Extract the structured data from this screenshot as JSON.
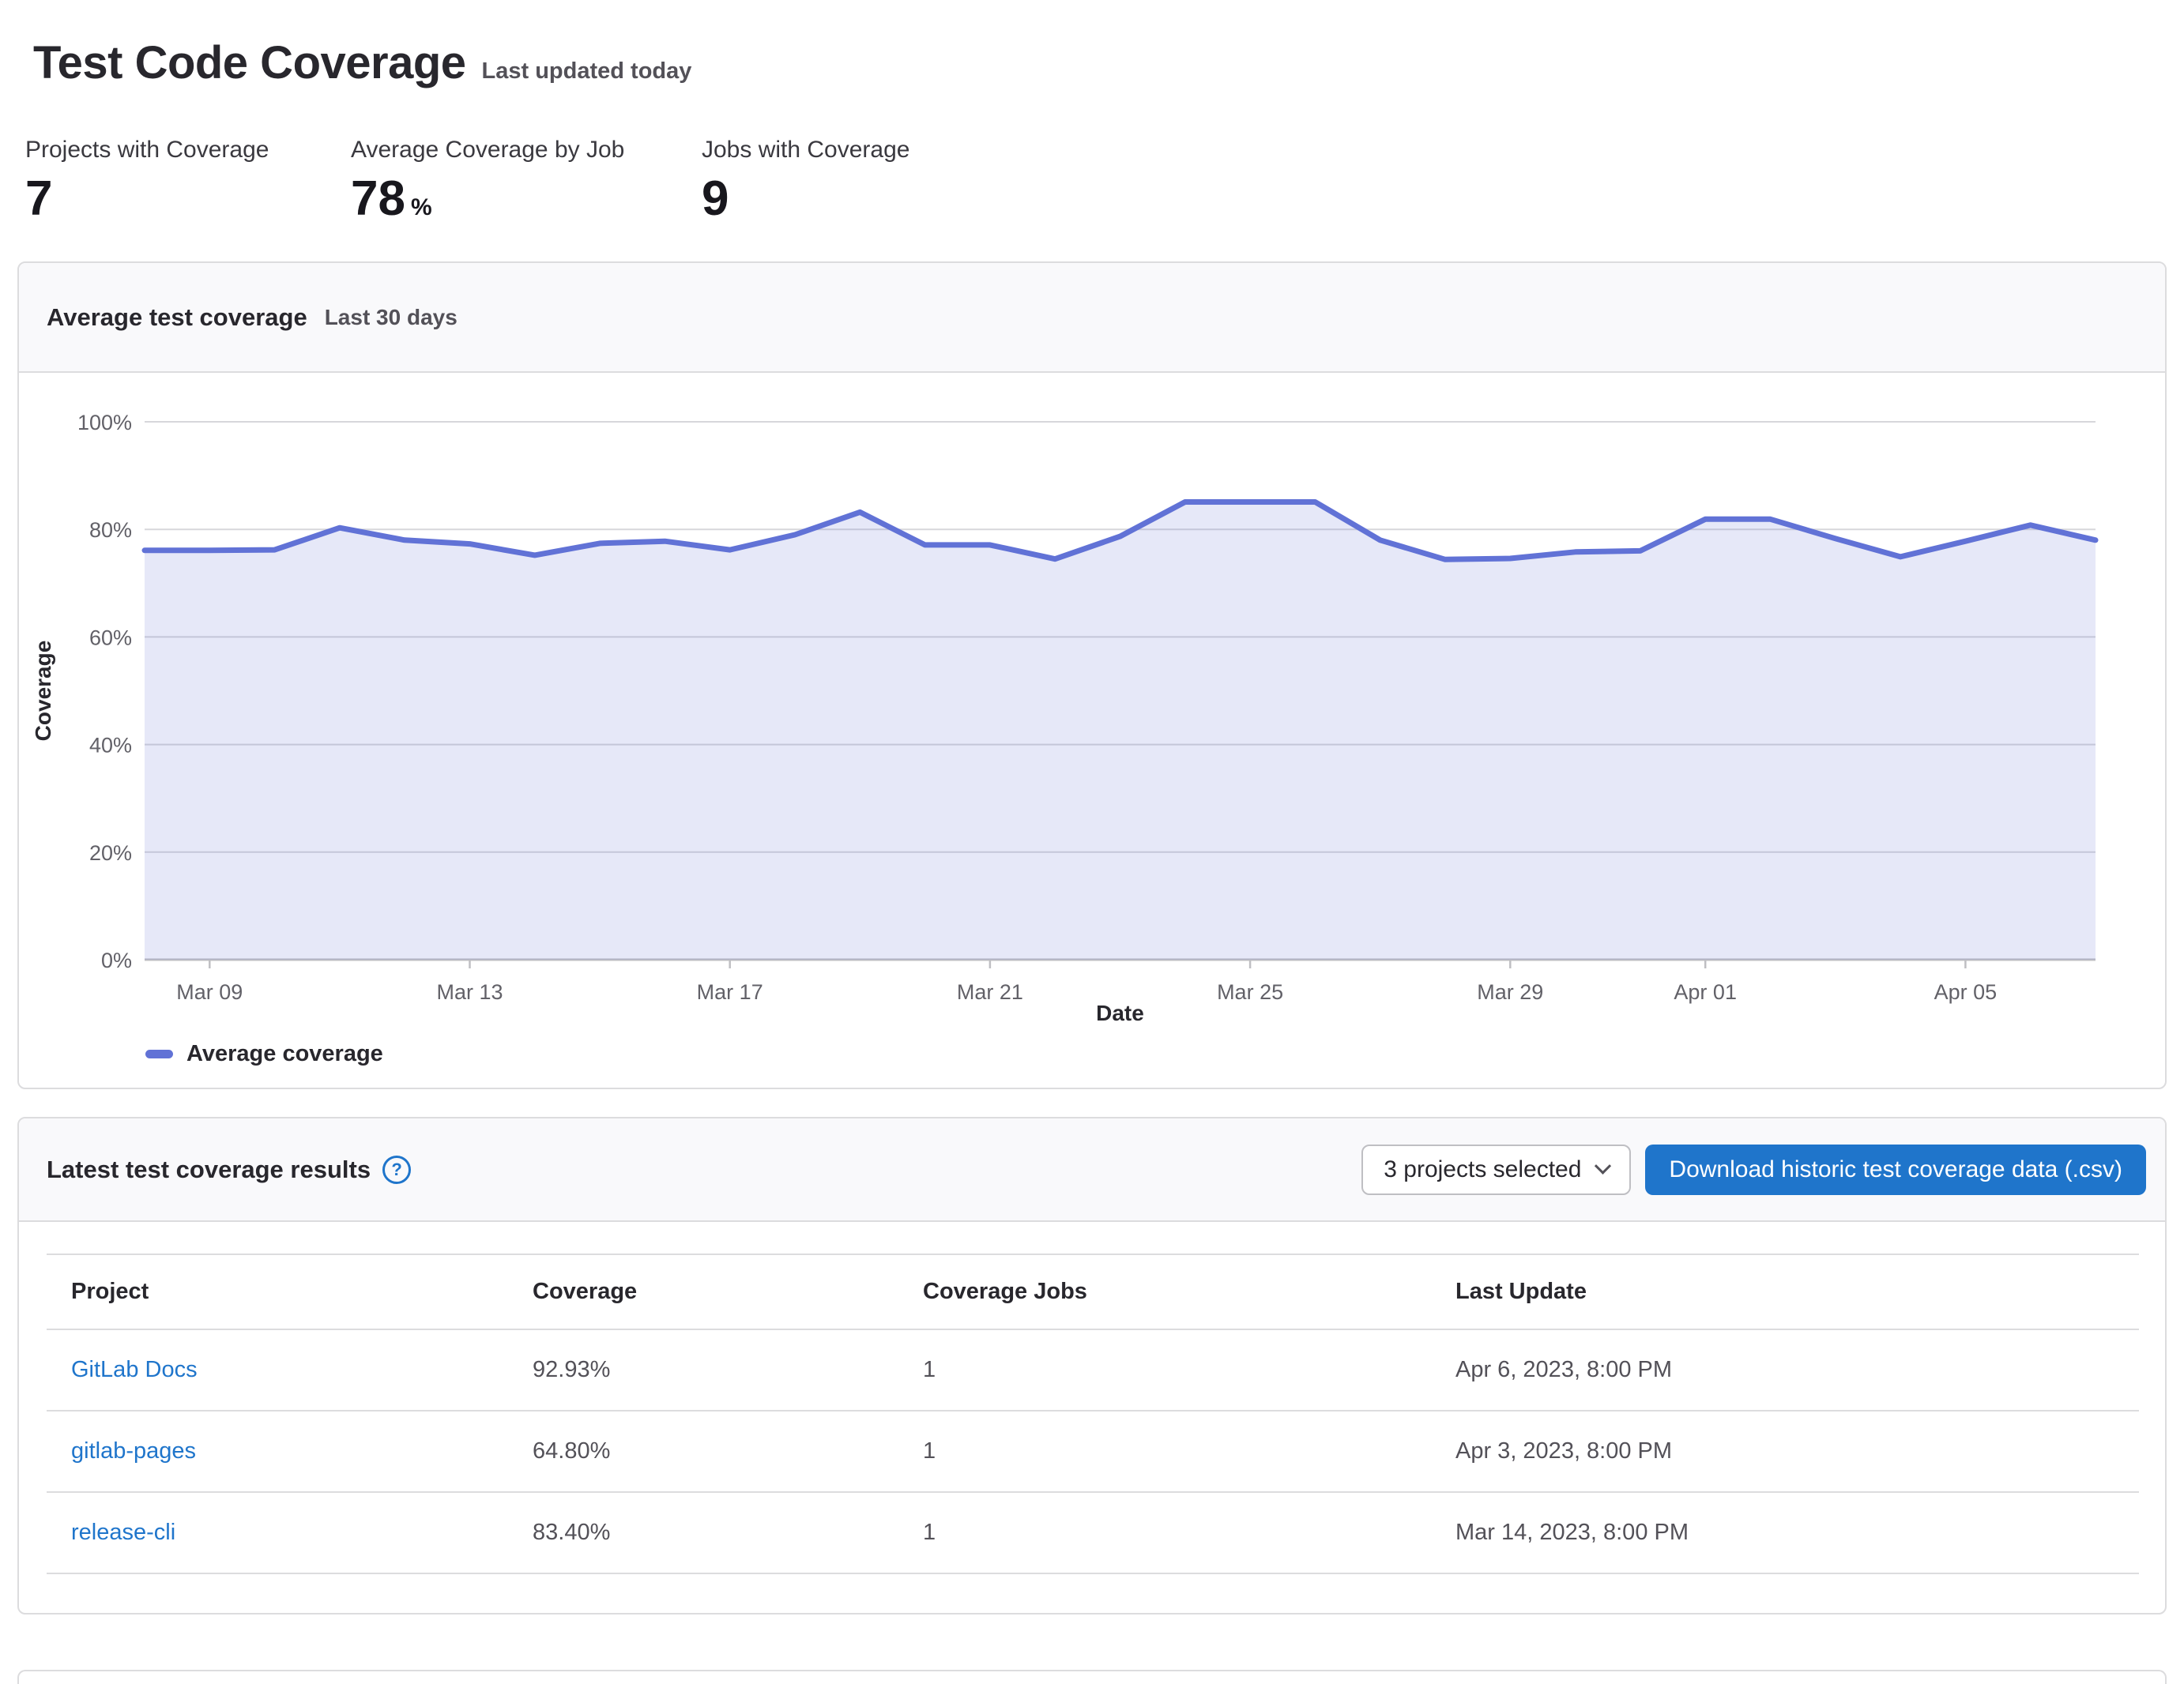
{
  "header": {
    "title": "Test Code Coverage",
    "subtitle": "Last updated today"
  },
  "stats": [
    {
      "label": "Projects with Coverage",
      "value": "7",
      "suffix": ""
    },
    {
      "label": "Average Coverage by Job",
      "value": "78",
      "suffix": "%"
    },
    {
      "label": "Jobs with Coverage",
      "value": "9",
      "suffix": ""
    }
  ],
  "chart_card": {
    "title": "Average test coverage",
    "subtitle": "Last 30 days",
    "legend_label": "Average coverage"
  },
  "chart_data": {
    "type": "area",
    "title": "Average test coverage",
    "x": [
      "Mar 08",
      "Mar 09",
      "Mar 10",
      "Mar 11",
      "Mar 12",
      "Mar 13",
      "Mar 14",
      "Mar 15",
      "Mar 16",
      "Mar 17",
      "Mar 18",
      "Mar 19",
      "Mar 20",
      "Mar 21",
      "Mar 22",
      "Mar 23",
      "Mar 24",
      "Mar 25",
      "Mar 26",
      "Mar 27",
      "Mar 28",
      "Mar 29",
      "Mar 30",
      "Mar 31",
      "Apr 01",
      "Apr 02",
      "Apr 03",
      "Apr 04",
      "Apr 05",
      "Apr 06",
      "Apr 07"
    ],
    "series": [
      {
        "name": "Average coverage",
        "values": [
          76.1,
          76.1,
          76.2,
          80.3,
          78.0,
          77.3,
          75.2,
          77.4,
          77.8,
          76.2,
          79.0,
          83.2,
          77.1,
          77.1,
          74.5,
          78.7,
          85.1,
          85.1,
          85.1,
          78.0,
          74.4,
          74.6,
          75.8,
          76.0,
          81.9,
          81.9,
          78.3,
          74.9,
          77.8,
          80.8,
          78.0
        ]
      }
    ],
    "xlabel": "Date",
    "ylabel": "Coverage",
    "ylim": [
      0,
      100
    ],
    "yticks": [
      "0%",
      "20%",
      "40%",
      "60%",
      "80%",
      "100%"
    ],
    "xticks": [
      "Mar 09",
      "Mar 13",
      "Mar 17",
      "Mar 21",
      "Mar 25",
      "Mar 29",
      "Apr 01",
      "Apr 05"
    ],
    "xtick_day_index": [
      1,
      5,
      9,
      13,
      17,
      21,
      24,
      28
    ],
    "grid": "horizontal",
    "legend_position": "bottom-left",
    "line_color": "#6172d6",
    "fill_color": "rgba(97,114,214,0.16)"
  },
  "results_card": {
    "title": "Latest test coverage results",
    "help_icon_glyph": "?",
    "dropdown_label": "3 projects selected",
    "download_button_label": "Download historic test coverage data (.csv)"
  },
  "table": {
    "columns": [
      "Project",
      "Coverage",
      "Coverage Jobs",
      "Last Update"
    ],
    "rows": [
      {
        "project": "GitLab Docs",
        "coverage": "92.93%",
        "jobs": "1",
        "last_update": "Apr 6, 2023, 8:00 PM"
      },
      {
        "project": "gitlab-pages",
        "coverage": "64.80%",
        "jobs": "1",
        "last_update": "Apr 3, 2023, 8:00 PM"
      },
      {
        "project": "release-cli",
        "coverage": "83.40%",
        "jobs": "1",
        "last_update": "Mar 14, 2023, 8:00 PM"
      }
    ]
  },
  "colors": {
    "accent_blue": "#1f75cb",
    "chart_line": "#6172d6",
    "text_primary": "#28272d",
    "text_secondary": "#535158",
    "border": "#dcdcde",
    "card_head_bg": "#f9f9fb"
  }
}
